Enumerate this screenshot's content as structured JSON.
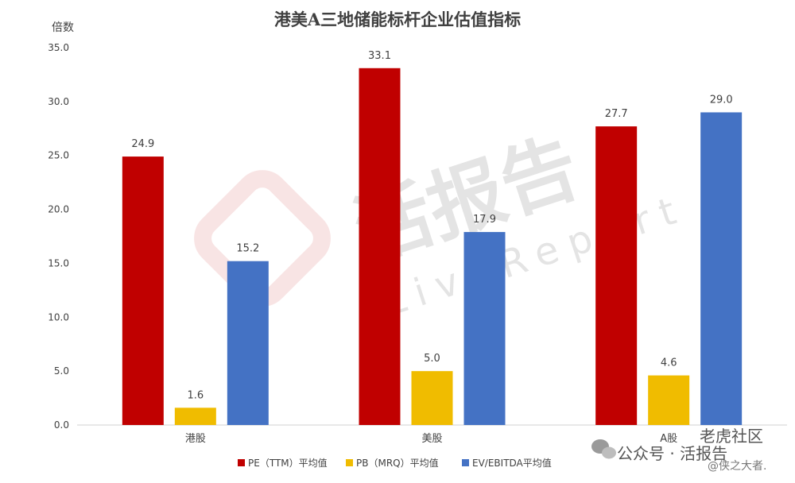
{
  "chart_data": {
    "type": "bar",
    "title": "港美A三地储能标杆企业估值指标",
    "ylabel": "倍数",
    "xlabel": "",
    "categories": [
      "港股",
      "美股",
      "A股"
    ],
    "series": [
      {
        "name": "PE（TTM）平均值",
        "color": "#c00000",
        "values": [
          24.9,
          33.1,
          27.7
        ],
        "labels": [
          "24.9",
          "33.1",
          "27.7"
        ]
      },
      {
        "name": "PB（MRQ）平均值",
        "color": "#f0bc00",
        "values": [
          1.6,
          5.0,
          4.6
        ],
        "labels": [
          "1.6",
          "5.0",
          "4.6"
        ]
      },
      {
        "name": "EV/EBITDA平均值",
        "color": "#4472c4",
        "values": [
          15.2,
          17.9,
          29.0
        ],
        "labels": [
          "15.2",
          "17.9",
          "29.0"
        ]
      }
    ],
    "ylim": [
      0,
      35
    ],
    "yticks": [
      "0.0",
      "5.0",
      "10.0",
      "15.0",
      "20.0",
      "25.0",
      "30.0",
      "35.0"
    ],
    "grid": false,
    "legend": "bottom"
  },
  "watermark": {
    "brand": "活报告",
    "text": "LiveReport"
  },
  "footer": {
    "wechat": "公众号 · 活报告",
    "community": "老虎社区",
    "author": "@侠之大者."
  }
}
